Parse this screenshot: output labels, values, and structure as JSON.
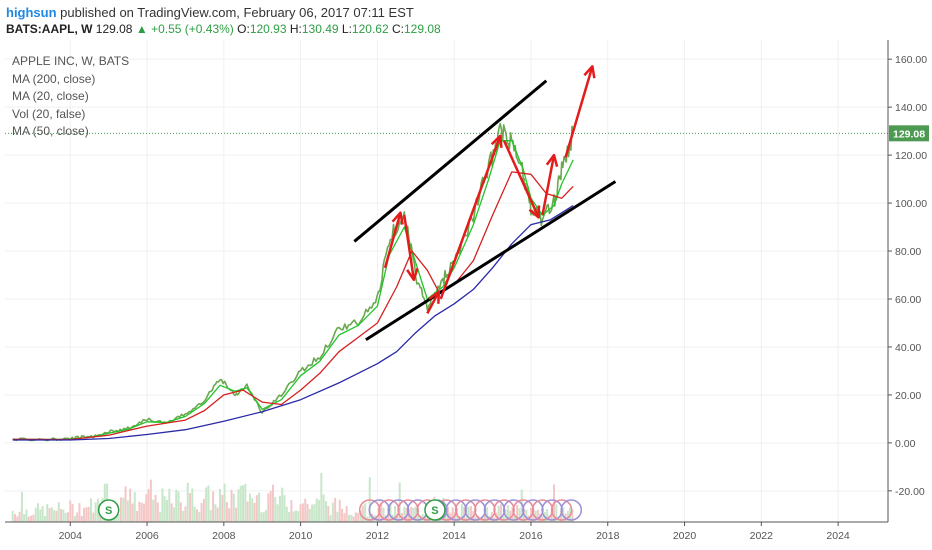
{
  "header": {
    "user": "highsun",
    "published_text": "published on TradingView.com, February 06, 2017 07:11 EST",
    "symbol": "BATS:AAPL, W",
    "last": "129.08",
    "change": "+0.55 (+0.43%)",
    "o_label": "O:",
    "o_value": "120.93",
    "h_label": "H:",
    "h_value": "130.49",
    "l_label": "L:",
    "l_value": "120.62",
    "c_label": "C:",
    "c_value": "129.08"
  },
  "legend": [
    "APPLE INC, W, BATS",
    "MA (200, close)",
    "MA (20, close)",
    "Vol (20, false)",
    "MA (50, close)"
  ],
  "colors": {
    "price": "#6aa84f",
    "ma20": "#22c42a",
    "ma50": "#d62020",
    "ma200": "#2a2aa8",
    "drawing": "#000000",
    "arrow": "#e41b1b",
    "price_label_bg": "#4c9a52"
  },
  "chart_data": {
    "type": "line",
    "y_axis": {
      "ticks": [
        -20,
        0,
        20,
        40,
        60,
        80,
        100,
        120,
        140,
        160
      ],
      "tick_labels": [
        "-20.00",
        "0.00",
        "20.00",
        "40.00",
        "60.00",
        "80.00",
        "100.00",
        "120.00",
        "140.00",
        "160.00"
      ],
      "range": [
        -33,
        168
      ]
    },
    "x_axis": {
      "ticks": [
        2004,
        2006,
        2008,
        2010,
        2012,
        2014,
        2016,
        2018,
        2020,
        2022,
        2024
      ],
      "range": [
        2002.3,
        2025.3
      ]
    },
    "last_price": 129.08,
    "last_price_label": "129.08",
    "series": [
      {
        "key": "price",
        "points": [
          [
            2002.5,
            1.5
          ],
          [
            2003.5,
            1.3
          ],
          [
            2004.0,
            1.8
          ],
          [
            2004.5,
            2.5
          ],
          [
            2005.0,
            4.5
          ],
          [
            2005.5,
            6.0
          ],
          [
            2006.0,
            10.0
          ],
          [
            2006.5,
            8.0
          ],
          [
            2007.0,
            12.0
          ],
          [
            2007.5,
            18.0
          ],
          [
            2007.9,
            27.0
          ],
          [
            2008.3,
            20.0
          ],
          [
            2008.6,
            24.0
          ],
          [
            2009.0,
            12.5
          ],
          [
            2009.5,
            20.0
          ],
          [
            2010.0,
            30.0
          ],
          [
            2010.5,
            36.0
          ],
          [
            2011.0,
            48.0
          ],
          [
            2011.5,
            50.0
          ],
          [
            2012.0,
            60.0
          ],
          [
            2012.3,
            85.0
          ],
          [
            2012.7,
            96.0
          ],
          [
            2013.0,
            70.0
          ],
          [
            2013.3,
            56.0
          ],
          [
            2013.7,
            68.0
          ],
          [
            2014.0,
            76.0
          ],
          [
            2014.5,
            95.0
          ],
          [
            2014.9,
            115.0
          ],
          [
            2015.2,
            130.0
          ],
          [
            2015.5,
            125.0
          ],
          [
            2015.8,
            112.0
          ],
          [
            2016.0,
            98.0
          ],
          [
            2016.3,
            93.0
          ],
          [
            2016.6,
            100.0
          ],
          [
            2016.8,
            115.0
          ],
          [
            2017.1,
            129.08
          ]
        ]
      },
      {
        "key": "ma20",
        "points": [
          [
            2002.5,
            1.5
          ],
          [
            2003.5,
            1.4
          ],
          [
            2004.0,
            1.6
          ],
          [
            2004.5,
            2.3
          ],
          [
            2005.0,
            4.0
          ],
          [
            2005.5,
            5.6
          ],
          [
            2006.0,
            8.8
          ],
          [
            2006.5,
            8.5
          ],
          [
            2007.0,
            11.0
          ],
          [
            2007.5,
            16.5
          ],
          [
            2007.9,
            24.0
          ],
          [
            2008.3,
            21.5
          ],
          [
            2008.6,
            23.0
          ],
          [
            2009.0,
            14.0
          ],
          [
            2009.5,
            18.0
          ],
          [
            2010.0,
            28.0
          ],
          [
            2010.5,
            34.0
          ],
          [
            2011.0,
            45.0
          ],
          [
            2011.5,
            49.0
          ],
          [
            2012.0,
            57.0
          ],
          [
            2012.3,
            78.0
          ],
          [
            2012.7,
            90.0
          ],
          [
            2013.0,
            75.0
          ],
          [
            2013.3,
            60.0
          ],
          [
            2013.7,
            65.0
          ],
          [
            2014.0,
            73.0
          ],
          [
            2014.5,
            91.0
          ],
          [
            2014.9,
            110.0
          ],
          [
            2015.2,
            126.0
          ],
          [
            2015.5,
            126.0
          ],
          [
            2015.8,
            114.0
          ],
          [
            2016.0,
            102.0
          ],
          [
            2016.3,
            95.0
          ],
          [
            2016.6,
            99.0
          ],
          [
            2016.8,
            108.0
          ],
          [
            2017.1,
            118.0
          ]
        ]
      },
      {
        "key": "ma50",
        "points": [
          [
            2002.5,
            1.5
          ],
          [
            2004.0,
            1.4
          ],
          [
            2005.0,
            3.2
          ],
          [
            2006.0,
            7.0
          ],
          [
            2007.0,
            9.5
          ],
          [
            2007.5,
            13.5
          ],
          [
            2008.0,
            20.0
          ],
          [
            2008.5,
            22.0
          ],
          [
            2009.0,
            17.0
          ],
          [
            2009.5,
            16.0
          ],
          [
            2010.0,
            22.0
          ],
          [
            2010.5,
            29.0
          ],
          [
            2011.0,
            38.0
          ],
          [
            2011.5,
            44.0
          ],
          [
            2012.0,
            50.0
          ],
          [
            2012.5,
            65.0
          ],
          [
            2012.9,
            80.0
          ],
          [
            2013.3,
            72.0
          ],
          [
            2013.6,
            63.0
          ],
          [
            2014.0,
            66.0
          ],
          [
            2014.5,
            76.0
          ],
          [
            2015.0,
            95.0
          ],
          [
            2015.5,
            113.0
          ],
          [
            2016.0,
            112.0
          ],
          [
            2016.4,
            104.0
          ],
          [
            2016.8,
            102.0
          ],
          [
            2017.1,
            107.0
          ]
        ]
      },
      {
        "key": "ma200",
        "points": [
          [
            2002.5,
            1.2
          ],
          [
            2004.0,
            1.2
          ],
          [
            2005.0,
            1.8
          ],
          [
            2006.0,
            3.5
          ],
          [
            2007.0,
            5.5
          ],
          [
            2008.0,
            9.0
          ],
          [
            2009.0,
            13.0
          ],
          [
            2010.0,
            18.0
          ],
          [
            2011.0,
            25.0
          ],
          [
            2012.0,
            33.0
          ],
          [
            2012.5,
            38.0
          ],
          [
            2013.0,
            46.0
          ],
          [
            2013.5,
            53.0
          ],
          [
            2014.0,
            58.0
          ],
          [
            2014.5,
            64.0
          ],
          [
            2015.0,
            73.0
          ],
          [
            2015.5,
            83.0
          ],
          [
            2016.0,
            91.0
          ],
          [
            2016.5,
            93.0
          ],
          [
            2017.0,
            98.0
          ],
          [
            2017.1,
            99.0
          ]
        ]
      }
    ],
    "annotations": {
      "channel_upper": [
        [
          2011.4,
          84.0
        ],
        [
          2016.4,
          151.0
        ]
      ],
      "channel_lower": [
        [
          2011.7,
          43.0
        ],
        [
          2018.2,
          109.0
        ]
      ],
      "arrows": [
        [
          [
            2012.2,
            73.0
          ],
          [
            2012.6,
            96.0
          ]
        ],
        [
          [
            2012.7,
            95.0
          ],
          [
            2012.95,
            68.0
          ]
        ],
        [
          [
            2013.3,
            54.0
          ],
          [
            2013.6,
            63.0
          ]
        ],
        [
          [
            2013.65,
            60.0
          ],
          [
            2015.2,
            128.0
          ]
        ],
        [
          [
            2015.3,
            126.0
          ],
          [
            2016.2,
            94.0
          ]
        ],
        [
          [
            2016.3,
            95.0
          ],
          [
            2016.6,
            120.0
          ]
        ],
        [
          [
            2016.9,
            119.0
          ],
          [
            2017.6,
            157.0
          ]
        ]
      ]
    },
    "markers": {
      "labels": [
        "S",
        "S"
      ],
      "x": [
        2005.0,
        2013.5
      ],
      "y": [
        -28,
        -28
      ]
    }
  }
}
